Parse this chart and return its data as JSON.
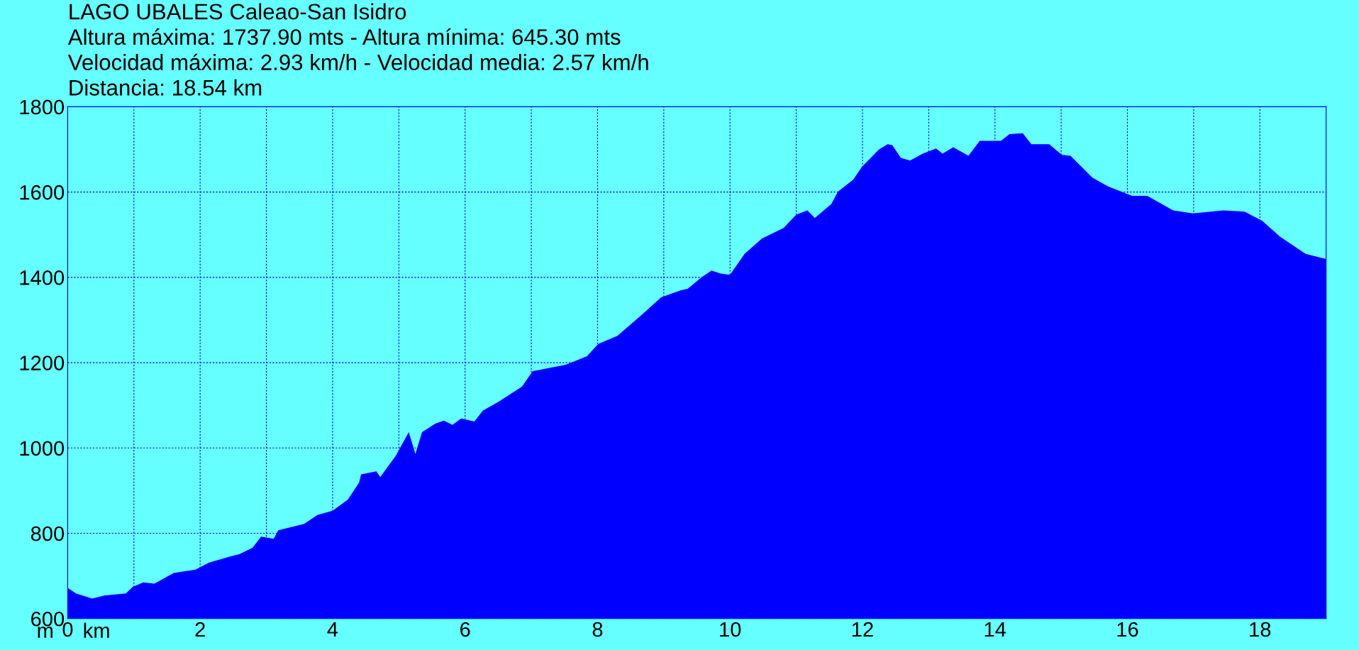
{
  "chart_data": {
    "type": "area",
    "title": "LAGO UBALES Caleao-San Isidro",
    "annotations": [
      "Altura máxima: 1737.90 mts - Altura mínima: 645.30 mts",
      "Velocidad máxima: 2.93 km/h - Velocidad media: 2.57 km/h",
      "Distancia: 18.54 km"
    ],
    "xlabel": "km",
    "ylabel": "m",
    "x": [
      0,
      0.125,
      0.37,
      0.55,
      0.88,
      0.98,
      1.14,
      1.31,
      1.6,
      1.93,
      2.13,
      2.46,
      2.59,
      2.79,
      2.92,
      3.11,
      3.18,
      3.57,
      3.77,
      4.0,
      4.23,
      4.4,
      4.43,
      4.66,
      4.72,
      4.95,
      5.15,
      5.25,
      5.35,
      5.55,
      5.68,
      5.81,
      5.94,
      6.14,
      6.27,
      6.5,
      6.86,
      7.02,
      7.19,
      7.52,
      7.84,
      8.01,
      8.3,
      8.63,
      8.96,
      9.26,
      9.36,
      9.56,
      9.72,
      9.86,
      10.0,
      10.22,
      10.48,
      10.81,
      11.0,
      11.17,
      11.28,
      11.53,
      11.63,
      11.86,
      11.99,
      12.25,
      12.38,
      12.45,
      12.58,
      12.72,
      12.91,
      13.11,
      13.21,
      13.37,
      13.6,
      13.77,
      14.09,
      14.22,
      14.42,
      14.55,
      14.82,
      15.01,
      15.14,
      15.47,
      15.71,
      16.07,
      16.3,
      16.69,
      16.99,
      17.45,
      17.77,
      18.04,
      18.3,
      18.69,
      19.0
    ],
    "values": [
      672,
      659,
      647,
      654,
      659,
      674,
      685,
      682,
      707,
      715,
      731,
      746,
      751,
      766,
      792,
      787,
      807,
      822,
      843,
      853,
      879,
      919,
      938,
      945,
      932,
      981,
      1037,
      986,
      1037,
      1057,
      1064,
      1054,
      1069,
      1062,
      1088,
      1108,
      1144,
      1180,
      1185,
      1195,
      1215,
      1244,
      1263,
      1307,
      1353,
      1370,
      1373,
      1399,
      1416,
      1409,
      1406,
      1455,
      1491,
      1516,
      1547,
      1557,
      1539,
      1572,
      1601,
      1629,
      1659,
      1700,
      1712,
      1710,
      1680,
      1674,
      1690,
      1702,
      1690,
      1705,
      1685,
      1720,
      1720,
      1736,
      1738,
      1712,
      1712,
      1687,
      1685,
      1634,
      1613,
      1591,
      1591,
      1557,
      1550,
      1557,
      1554,
      1532,
      1496,
      1455,
      1443
    ],
    "color": "#0000ff",
    "xlim": [
      0,
      19
    ],
    "ylim": [
      600,
      1800
    ],
    "xticks": [
      0,
      {
        "value": 1,
        "label": null
      },
      2,
      {
        "value": 3,
        "label": null
      },
      4,
      {
        "value": 5,
        "label": null
      },
      6,
      {
        "value": 7,
        "label": null
      },
      8,
      {
        "value": 9,
        "label": null
      },
      10,
      {
        "value": 11,
        "label": null
      },
      12,
      {
        "value": 13,
        "label": null
      },
      14,
      {
        "value": 15,
        "label": null
      },
      16,
      {
        "value": 17,
        "label": null
      },
      18,
      {
        "value": 19,
        "label": null
      }
    ],
    "yticks": [
      600,
      800,
      1000,
      1200,
      1400,
      1600,
      1800
    ],
    "grid": true
  }
}
